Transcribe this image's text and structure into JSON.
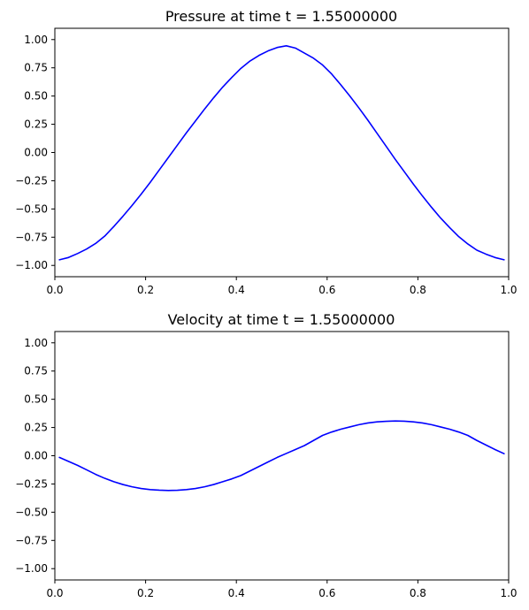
{
  "chart_data": [
    {
      "type": "line",
      "title": "Pressure at time t =     1.55000000",
      "xlabel": "",
      "ylabel": "",
      "xlim": [
        0.0,
        1.0
      ],
      "ylim": [
        -1.1,
        1.1
      ],
      "xticks": [
        "0.0",
        "0.2",
        "0.4",
        "0.6",
        "0.8",
        "1.0"
      ],
      "yticks": [
        "1.00",
        "0.75",
        "0.50",
        "0.25",
        "0.00",
        "−0.25",
        "−0.50",
        "−0.75",
        "−1.00"
      ],
      "grid": false,
      "color": "#0000ff",
      "series": [
        {
          "x": [
            0.01,
            0.03,
            0.05,
            0.07,
            0.09,
            0.11,
            0.13,
            0.15,
            0.17,
            0.19,
            0.21,
            0.23,
            0.25,
            0.27,
            0.29,
            0.31,
            0.33,
            0.35,
            0.37,
            0.39,
            0.41,
            0.43,
            0.45,
            0.47,
            0.49,
            0.51,
            0.53,
            0.55,
            0.57,
            0.59,
            0.61,
            0.63,
            0.65,
            0.67,
            0.69,
            0.71,
            0.73,
            0.75,
            0.77,
            0.79,
            0.81,
            0.83,
            0.85,
            0.87,
            0.89,
            0.91,
            0.93,
            0.95,
            0.97,
            0.99
          ],
          "values": [
            -0.95,
            -0.93,
            -0.895,
            -0.855,
            -0.805,
            -0.74,
            -0.655,
            -0.565,
            -0.47,
            -0.37,
            -0.265,
            -0.155,
            -0.045,
            0.065,
            0.175,
            0.28,
            0.385,
            0.485,
            0.58,
            0.665,
            0.745,
            0.81,
            0.86,
            0.9,
            0.93,
            0.945,
            0.925,
            0.88,
            0.835,
            0.775,
            0.695,
            0.6,
            0.5,
            0.395,
            0.285,
            0.17,
            0.055,
            -0.06,
            -0.17,
            -0.28,
            -0.385,
            -0.485,
            -0.58,
            -0.665,
            -0.745,
            -0.81,
            -0.865,
            -0.9,
            -0.93,
            -0.95
          ]
        }
      ]
    },
    {
      "type": "line",
      "title": "Velocity at time t =     1.55000000",
      "xlabel": "",
      "ylabel": "",
      "xlim": [
        0.0,
        1.0
      ],
      "ylim": [
        -1.1,
        1.1
      ],
      "xticks": [
        "0.0",
        "0.2",
        "0.4",
        "0.6",
        "0.8",
        "1.0"
      ],
      "yticks": [
        "1.00",
        "0.75",
        "0.50",
        "0.25",
        "0.00",
        "−0.25",
        "−0.50",
        "−0.75",
        "−1.00"
      ],
      "grid": false,
      "color": "#0000ff",
      "series": [
        {
          "x": [
            0.01,
            0.03,
            0.05,
            0.07,
            0.09,
            0.11,
            0.13,
            0.15,
            0.17,
            0.19,
            0.21,
            0.23,
            0.25,
            0.27,
            0.29,
            0.31,
            0.33,
            0.35,
            0.37,
            0.39,
            0.41,
            0.43,
            0.45,
            0.47,
            0.49,
            0.51,
            0.53,
            0.55,
            0.57,
            0.59,
            0.61,
            0.63,
            0.65,
            0.67,
            0.69,
            0.71,
            0.73,
            0.75,
            0.77,
            0.79,
            0.81,
            0.83,
            0.85,
            0.87,
            0.89,
            0.91,
            0.93,
            0.95,
            0.97,
            0.99
          ],
          "values": [
            -0.015,
            -0.05,
            -0.085,
            -0.125,
            -0.165,
            -0.2,
            -0.23,
            -0.255,
            -0.275,
            -0.29,
            -0.3,
            -0.305,
            -0.308,
            -0.306,
            -0.3,
            -0.29,
            -0.275,
            -0.255,
            -0.23,
            -0.205,
            -0.175,
            -0.135,
            -0.095,
            -0.055,
            -0.015,
            0.02,
            0.055,
            0.09,
            0.135,
            0.18,
            0.21,
            0.235,
            0.255,
            0.275,
            0.29,
            0.3,
            0.305,
            0.308,
            0.306,
            0.3,
            0.29,
            0.275,
            0.255,
            0.235,
            0.21,
            0.18,
            0.135,
            0.095,
            0.055,
            0.018
          ]
        }
      ]
    }
  ]
}
